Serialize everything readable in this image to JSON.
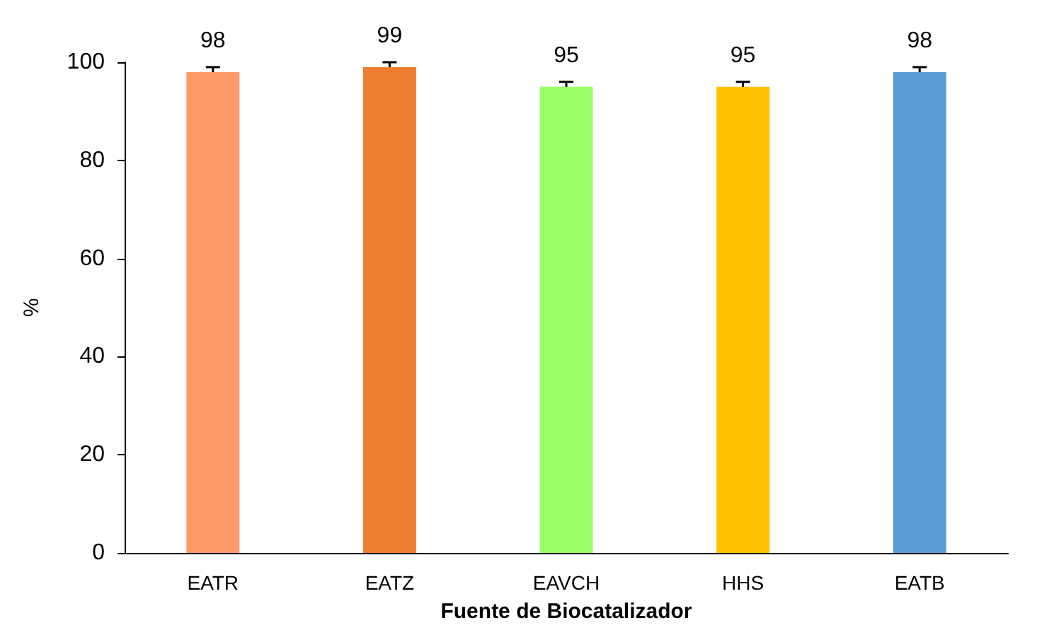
{
  "chart_data": {
    "type": "bar",
    "xlabel": "Fuente de Biocatalizador",
    "ylabel": "%",
    "categories": [
      "EATR",
      "EATZ",
      "EAVCH",
      "HHS",
      "EATB"
    ],
    "values": [
      98,
      99,
      95,
      95,
      98
    ],
    "errors": [
      1,
      1,
      1,
      1,
      1
    ],
    "colors": [
      "#ff9966",
      "#ed7d31",
      "#99ff66",
      "#ffc000",
      "#5b9bd5"
    ],
    "ylim": [
      0,
      100
    ],
    "yticks": [
      0,
      20,
      40,
      60,
      80,
      100
    ],
    "data_labels": true,
    "grid": false
  }
}
